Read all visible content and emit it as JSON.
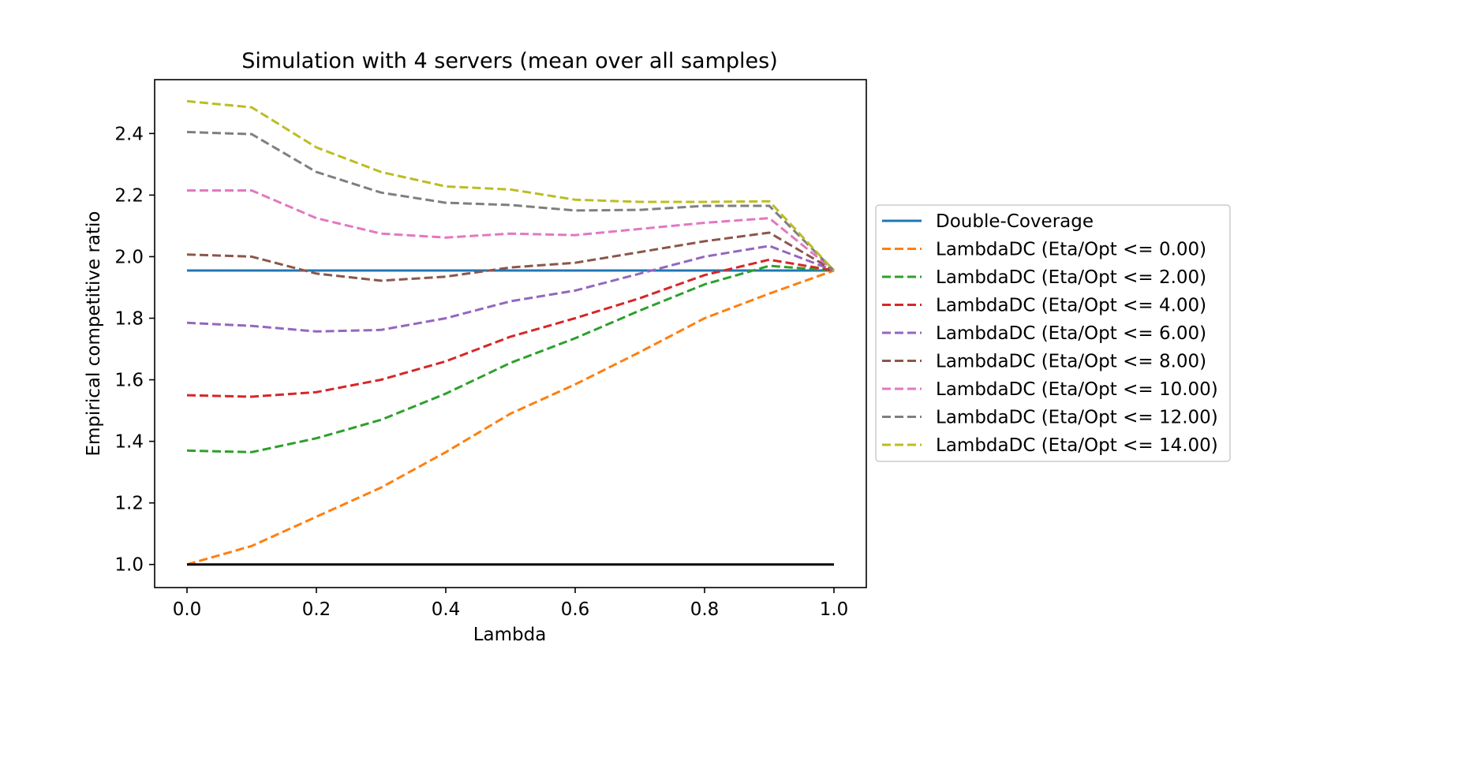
{
  "chart_data": {
    "type": "line",
    "title": "Simulation with 4 servers (mean over all samples)",
    "xlabel": "Lambda",
    "ylabel": "Empirical competitive ratio",
    "xlim": [
      -0.05,
      1.05
    ],
    "ylim": [
      0.925,
      2.575
    ],
    "xticks": [
      0.0,
      0.2,
      0.4,
      0.6,
      0.8,
      1.0
    ],
    "xtick_labels": [
      "0.0",
      "0.2",
      "0.4",
      "0.6",
      "0.8",
      "1.0"
    ],
    "yticks": [
      1.0,
      1.2,
      1.4,
      1.6,
      1.8,
      2.0,
      2.2,
      2.4
    ],
    "ytick_labels": [
      "1.0",
      "1.2",
      "1.4",
      "1.6",
      "1.8",
      "2.0",
      "2.2",
      "2.4"
    ],
    "grid": false,
    "legend_position": "outside-right",
    "x": [
      0.0,
      0.1,
      0.2,
      0.3,
      0.4,
      0.5,
      0.6,
      0.7,
      0.8,
      0.9,
      1.0
    ],
    "series": [
      {
        "name": "Double-Coverage",
        "color": "#1f77b4",
        "style": "solid",
        "values": [
          1.955,
          1.955,
          1.955,
          1.955,
          1.955,
          1.955,
          1.955,
          1.955,
          1.955,
          1.955,
          1.955
        ]
      },
      {
        "name": "LambdaDC (Eta/Opt <= 0.00)",
        "color": "#ff7f0e",
        "style": "dashed",
        "values": [
          1.0,
          1.06,
          1.155,
          1.25,
          1.365,
          1.49,
          1.585,
          1.69,
          1.8,
          1.88,
          1.955
        ]
      },
      {
        "name": "LambdaDC (Eta/Opt <= 2.00)",
        "color": "#2ca02c",
        "style": "dashed",
        "values": [
          1.37,
          1.365,
          1.41,
          1.47,
          1.555,
          1.655,
          1.735,
          1.825,
          1.91,
          1.97,
          1.955
        ]
      },
      {
        "name": "LambdaDC (Eta/Opt <= 4.00)",
        "color": "#d62728",
        "style": "dashed",
        "values": [
          1.55,
          1.545,
          1.56,
          1.6,
          1.66,
          1.74,
          1.8,
          1.865,
          1.94,
          1.99,
          1.955
        ]
      },
      {
        "name": "LambdaDC (Eta/Opt <= 6.00)",
        "color": "#9467bd",
        "style": "dashed",
        "values": [
          1.785,
          1.775,
          1.757,
          1.762,
          1.8,
          1.855,
          1.89,
          1.945,
          2.0,
          2.035,
          1.955
        ]
      },
      {
        "name": "LambdaDC (Eta/Opt <= 8.00)",
        "color": "#8c564b",
        "style": "dashed",
        "values": [
          2.007,
          2.0,
          1.945,
          1.922,
          1.935,
          1.965,
          1.98,
          2.015,
          2.05,
          2.078,
          1.955
        ]
      },
      {
        "name": "LambdaDC (Eta/Opt <= 10.00)",
        "color": "#e377c2",
        "style": "dashed",
        "values": [
          2.215,
          2.215,
          2.125,
          2.075,
          2.062,
          2.075,
          2.07,
          2.09,
          2.11,
          2.125,
          1.955
        ]
      },
      {
        "name": "LambdaDC (Eta/Opt <= 12.00)",
        "color": "#7f7f7f",
        "style": "dashed",
        "values": [
          2.405,
          2.398,
          2.275,
          2.208,
          2.175,
          2.168,
          2.15,
          2.152,
          2.165,
          2.165,
          1.955
        ]
      },
      {
        "name": "LambdaDC (Eta/Opt <= 14.00)",
        "color": "#bcbd22",
        "style": "dashed",
        "values": [
          2.505,
          2.485,
          2.355,
          2.275,
          2.228,
          2.218,
          2.185,
          2.178,
          2.178,
          2.18,
          1.955
        ]
      }
    ],
    "reference_line": {
      "y": 1.0,
      "color": "#000000",
      "x_range": [
        0.0,
        1.0
      ]
    }
  }
}
